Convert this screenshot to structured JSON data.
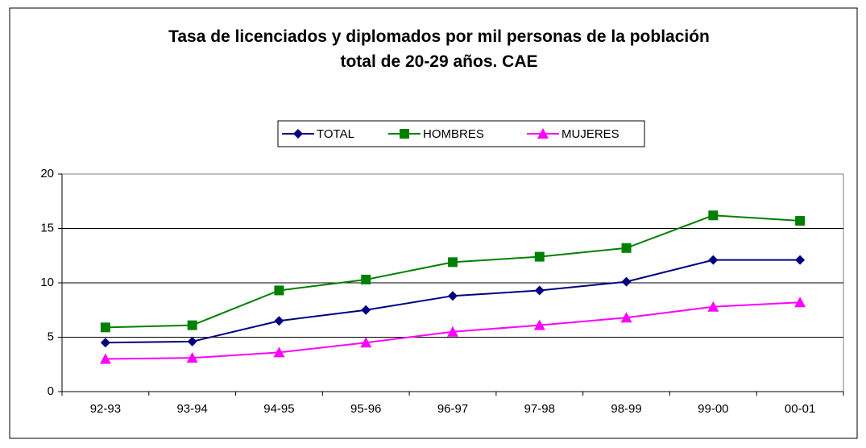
{
  "chart_data": {
    "type": "line",
    "title": "Tasa de licenciados y diplomados por mil personas de la población total de 20-29 años. CAE",
    "categories": [
      "92-93",
      "93-94",
      "94-95",
      "95-96",
      "96-97",
      "97-98",
      "98-99",
      "99-00",
      "00-01"
    ],
    "series": [
      {
        "name": "TOTAL",
        "color": "#000080",
        "marker": "diamond",
        "values": [
          4.5,
          4.6,
          6.5,
          7.5,
          8.8,
          9.3,
          10.1,
          12.1,
          12.1
        ]
      },
      {
        "name": "HOMBRES",
        "color": "#008000",
        "marker": "square",
        "values": [
          5.9,
          6.1,
          9.3,
          10.3,
          11.9,
          12.4,
          13.2,
          16.2,
          15.7
        ]
      },
      {
        "name": "MUJERES",
        "color": "#ff00ff",
        "marker": "triangle",
        "values": [
          3.0,
          3.1,
          3.6,
          4.5,
          5.5,
          6.1,
          6.8,
          7.8,
          8.2
        ]
      }
    ],
    "ylim": [
      0,
      20
    ],
    "yticks": [
      0,
      5,
      10,
      15,
      20
    ],
    "grid": true,
    "legend": "top"
  }
}
